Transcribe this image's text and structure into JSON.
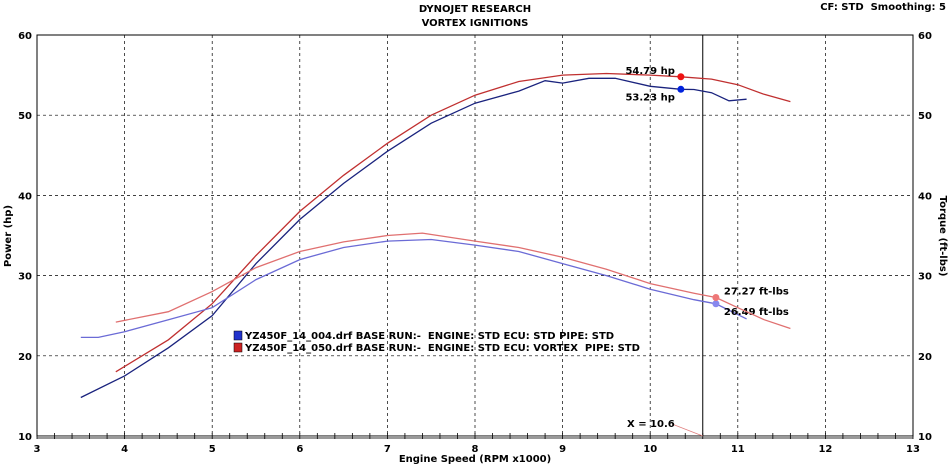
{
  "header": {
    "title": "DYNOJET RESEARCH",
    "subtitle": "VORTEX IGNITIONS",
    "info": "CF: STD  Smoothing: 5"
  },
  "chart_data": {
    "type": "line",
    "title": "DYNOJET RESEARCH",
    "subtitle": "VORTEX IGNITIONS",
    "xlabel": "Engine Speed (RPM x1000)",
    "ylabel": "Power (hp)",
    "y2label": "Torque (ft-lbs)",
    "xlim": [
      3,
      13
    ],
    "ylim": [
      10,
      60
    ],
    "y2lim": [
      10,
      60
    ],
    "xticks": [
      "3",
      "4",
      "5",
      "6",
      "7",
      "8",
      "9",
      "10",
      "11",
      "12",
      "13"
    ],
    "yticks": [
      "10",
      "20",
      "30",
      "40",
      "50",
      "60"
    ],
    "grid": true,
    "cursor": {
      "x": 10.6,
      "label": "X = 10.6"
    },
    "legend": {
      "placement": "center-left",
      "entries": [
        {
          "name": "YZ450F_14_004.drf BASE RUN:-  ENGINE: STD ECU: STD PIPE: STD",
          "color": "#2233cc"
        },
        {
          "name": "YZ450F_14_050.drf BASE RUN:-  ENGINE: STD ECU: VORTEX  PIPE: STD",
          "color": "#cc2222"
        }
      ]
    },
    "series": [
      {
        "name": "Power 004",
        "color": "#1a237e",
        "axis": "left",
        "marker": {
          "x": 10.35,
          "y": 53.23,
          "label": "53.23 hp",
          "color": "#0022dd"
        },
        "x": [
          3.5,
          4,
          4.5,
          5,
          5.5,
          6,
          6.5,
          7,
          7.5,
          8,
          8.5,
          8.8,
          9,
          9.3,
          9.6,
          10,
          10.35,
          10.5,
          10.7,
          10.9,
          11.1
        ],
        "y": [
          14.8,
          17.5,
          21,
          25,
          31.5,
          37,
          41.5,
          45.5,
          49,
          51.5,
          53,
          54.3,
          54,
          54.6,
          54.6,
          53.6,
          53.23,
          53.2,
          52.8,
          51.8,
          52
        ]
      },
      {
        "name": "Power 050",
        "color": "#c03030",
        "axis": "left",
        "marker": {
          "x": 10.35,
          "y": 54.79,
          "label": "54.79 hp",
          "color": "#ee1111"
        },
        "x": [
          3.9,
          4.5,
          5,
          5.5,
          6,
          6.5,
          7,
          7.5,
          8,
          8.5,
          9,
          9.5,
          10,
          10.35,
          10.7,
          11,
          11.3,
          11.6
        ],
        "y": [
          18,
          22,
          26.5,
          32.5,
          38,
          42.5,
          46.5,
          50,
          52.5,
          54.2,
          55,
          55.2,
          55,
          54.79,
          54.5,
          53.8,
          52.6,
          51.7
        ]
      },
      {
        "name": "Torque 004",
        "color": "#6b6bd6",
        "axis": "right",
        "marker": {
          "x": 10.75,
          "y": 26.49,
          "label": "26.49 ft-lbs",
          "color": "#8888ee"
        },
        "x": [
          3.5,
          3.7,
          4,
          4.5,
          5,
          5.5,
          6,
          6.5,
          7,
          7.5,
          8,
          8.5,
          9,
          9.5,
          10,
          10.5,
          10.75,
          11.1
        ],
        "y": [
          22.3,
          22.3,
          23,
          24.5,
          26,
          29.5,
          32,
          33.5,
          34.3,
          34.5,
          33.8,
          33,
          31.5,
          30,
          28.3,
          27,
          26.49,
          24.6
        ]
      },
      {
        "name": "Torque 050",
        "color": "#e07070",
        "axis": "right",
        "marker": {
          "x": 10.75,
          "y": 27.27,
          "label": "27.27 ft-lbs",
          "color": "#ee7777"
        },
        "x": [
          3.9,
          4.5,
          5,
          5.5,
          6,
          6.5,
          7,
          7.4,
          8,
          8.5,
          9,
          9.5,
          10,
          10.5,
          10.75,
          11,
          11.3,
          11.6
        ],
        "y": [
          24.2,
          25.5,
          28,
          31,
          33,
          34.2,
          35,
          35.3,
          34.3,
          33.5,
          32.3,
          30.8,
          29,
          27.8,
          27.27,
          26,
          24.5,
          23.4
        ]
      }
    ]
  }
}
